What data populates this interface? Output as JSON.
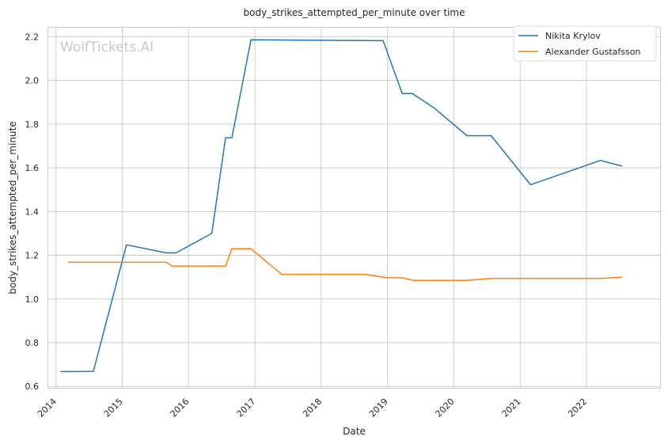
{
  "chart_data": {
    "type": "line",
    "title": "body_strikes_attempted_per_minute over time",
    "xlabel": "Date",
    "ylabel": "body_strikes_attempted_per_minute",
    "watermark": "WolfTickets.AI",
    "xlim": [
      "2013-11-15",
      "2023-02-15"
    ],
    "ylim": [
      0.59,
      2.245
    ],
    "x_ticks": [
      "2014",
      "2015",
      "2016",
      "2017",
      "2018",
      "2019",
      "2020",
      "2021",
      "2022"
    ],
    "y_ticks": [
      "0.6",
      "0.8",
      "1.0",
      "1.2",
      "1.4",
      "1.6",
      "1.8",
      "2.0",
      "2.2"
    ],
    "grid": true,
    "legend_position": "top-right",
    "series": [
      {
        "name": "Nikita Krylov",
        "color": "#1f77b4",
        "x": [
          "2014-01-25",
          "2014-07-26",
          "2015-01-24",
          "2015-08-30",
          "2015-10-24",
          "2016-05-08",
          "2016-07-23",
          "2016-08-27",
          "2016-12-10",
          "2018-12-08",
          "2019-03-23",
          "2019-05-18",
          "2019-09-14",
          "2020-03-14",
          "2020-07-25",
          "2021-02-27",
          "2022-03-19",
          "2022-07-16"
        ],
        "y": [
          0.668,
          0.669,
          1.248,
          1.211,
          1.211,
          1.3,
          1.738,
          1.738,
          2.186,
          2.182,
          1.94,
          1.94,
          1.875,
          1.747,
          1.747,
          1.523,
          1.634,
          1.608
        ]
      },
      {
        "name": "Alexander Gustafsson",
        "color": "#ff7f0e",
        "x": [
          "2014-03-08",
          "2015-01-24",
          "2015-08-30",
          "2015-10-03",
          "2016-05-28",
          "2016-07-23",
          "2016-08-27",
          "2016-12-10",
          "2017-05-28",
          "2018-09-01",
          "2018-12-29",
          "2019-03-23",
          "2019-05-25",
          "2020-03-14",
          "2020-07-25",
          "2021-02-27",
          "2022-03-19",
          "2022-07-16"
        ],
        "y": [
          1.168,
          1.168,
          1.168,
          1.151,
          1.151,
          1.151,
          1.23,
          1.23,
          1.113,
          1.113,
          1.097,
          1.097,
          1.085,
          1.085,
          1.094,
          1.094,
          1.094,
          1.1
        ]
      }
    ]
  }
}
